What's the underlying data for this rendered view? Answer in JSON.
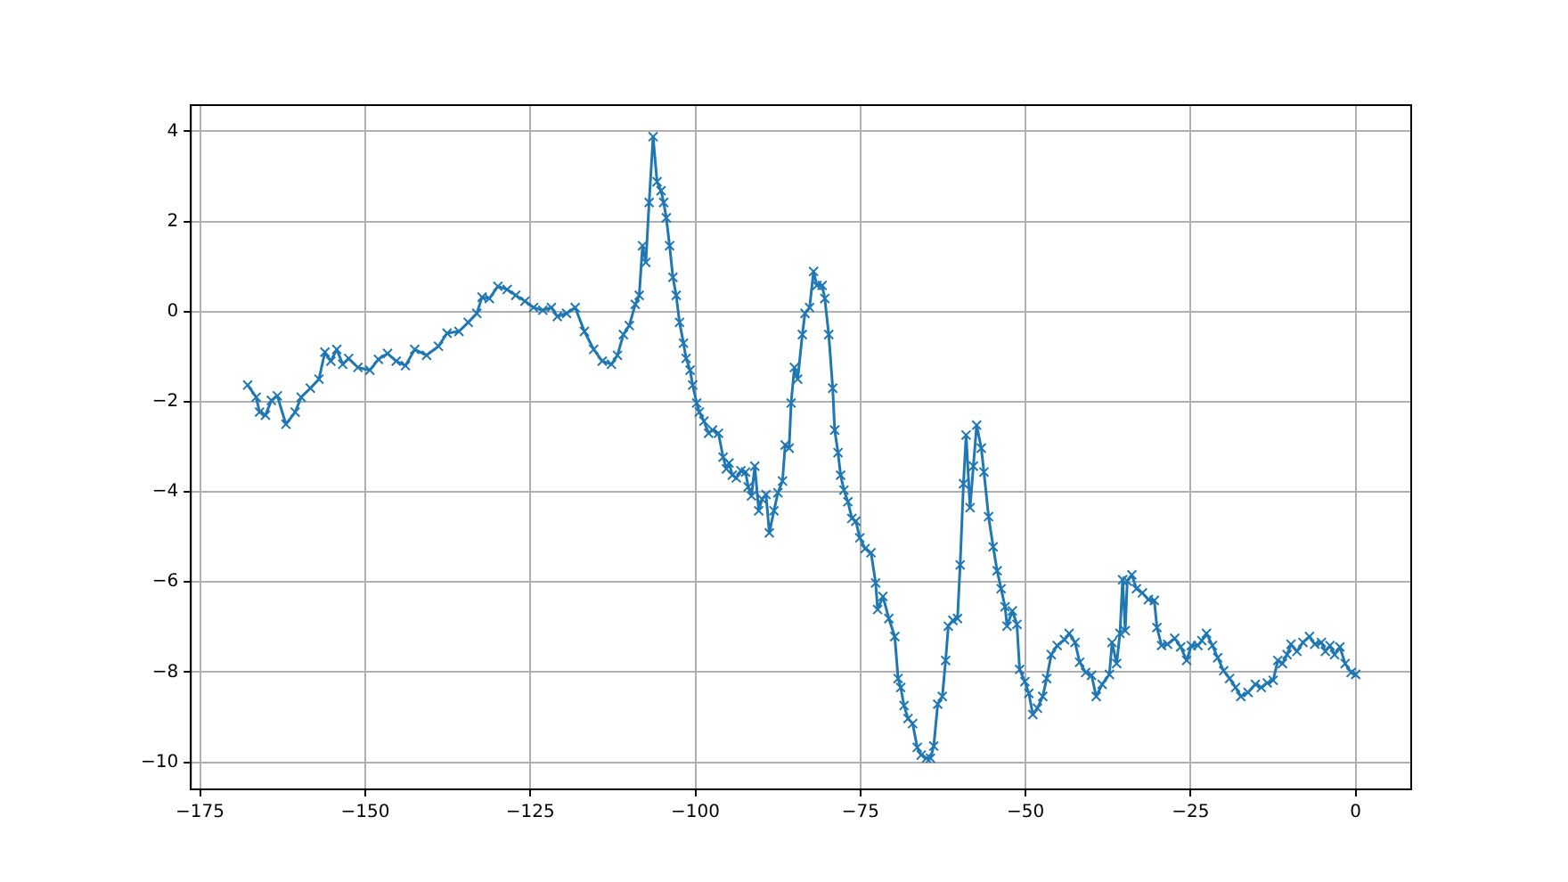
{
  "chart_data": {
    "type": "line",
    "marker": "cross",
    "grid": true,
    "xlim": [
      -176.4,
      8.4
    ],
    "xticks": [
      {
        "value": -175,
        "label": "−175"
      },
      {
        "value": -150,
        "label": "−150"
      },
      {
        "value": -125,
        "label": "−125"
      },
      {
        "value": -100,
        "label": "−100"
      },
      {
        "value": -75,
        "label": "−75"
      },
      {
        "value": -50,
        "label": "−50"
      },
      {
        "value": -25,
        "label": "−25"
      },
      0
    ],
    "ylim": [
      -10.6,
      4.58
    ],
    "yticks": [
      {
        "value": -10,
        "label": "−10"
      },
      {
        "value": -8,
        "label": "−8"
      },
      {
        "value": -6,
        "label": "−6"
      },
      {
        "value": -4,
        "label": "−4"
      },
      {
        "value": -2,
        "label": "−2"
      },
      0,
      2,
      4
    ],
    "series": [
      {
        "color": "#1f77b4",
        "x": [
          -167.8,
          -166.5,
          -166.0,
          -165.1,
          -164.2,
          -163.3,
          -162.0,
          -160.6,
          -159.7,
          -158.3,
          -157.0,
          -156.1,
          -155.2,
          -154.3,
          -153.4,
          -152.5,
          -151.1,
          -149.3,
          -148.0,
          -146.6,
          -145.3,
          -143.9,
          -142.5,
          -140.7,
          -138.9,
          -137.6,
          -135.8,
          -134.4,
          -133.1,
          -132.3,
          -131.2,
          -129.9,
          -128.5,
          -127.2,
          -125.8,
          -124.5,
          -123.1,
          -121.8,
          -120.9,
          -119.5,
          -118.2,
          -116.8,
          -115.4,
          -114.1,
          -112.7,
          -111.8,
          -110.9,
          -110.0,
          -109.1,
          -108.5,
          -108.0,
          -107.5,
          -107.0,
          -106.4,
          -105.8,
          -105.2,
          -104.8,
          -104.4,
          -103.9,
          -103.4,
          -102.9,
          -102.4,
          -101.8,
          -101.4,
          -100.8,
          -100.4,
          -99.8,
          -99.4,
          -98.7,
          -98.0,
          -97.4,
          -96.5,
          -95.8,
          -95.3,
          -94.9,
          -94.4,
          -93.8,
          -93.1,
          -92.4,
          -92.0,
          -91.5,
          -91.0,
          -90.4,
          -89.9,
          -89.3,
          -88.8,
          -88.1,
          -87.5,
          -86.8,
          -86.4,
          -85.8,
          -85.5,
          -85.0,
          -84.5,
          -83.8,
          -83.4,
          -82.7,
          -82.1,
          -81.6,
          -80.8,
          -80.4,
          -79.8,
          -79.2,
          -78.9,
          -78.4,
          -78.0,
          -77.5,
          -76.9,
          -76.3,
          -75.7,
          -75.1,
          -74.3,
          -73.4,
          -72.7,
          -72.4,
          -71.6,
          -70.7,
          -69.8,
          -69.3,
          -68.9,
          -68.4,
          -67.8,
          -67.1,
          -66.4,
          -65.8,
          -65.0,
          -64.4,
          -63.9,
          -63.3,
          -62.6,
          -62.1,
          -61.7,
          -61.0,
          -60.3,
          -59.9,
          -59.4,
          -59.0,
          -58.4,
          -57.9,
          -57.4,
          -56.7,
          -56.3,
          -55.6,
          -54.9,
          -54.3,
          -53.7,
          -53.1,
          -52.8,
          -52.0,
          -51.3,
          -50.9,
          -50.1,
          -49.5,
          -48.9,
          -48.2,
          -47.4,
          -46.8,
          -46.1,
          -45.2,
          -44.1,
          -43.4,
          -42.5,
          -41.8,
          -40.9,
          -40.0,
          -39.3,
          -38.4,
          -37.3,
          -36.9,
          -36.2,
          -35.7,
          -35.3,
          -34.9,
          -34.6,
          -33.9,
          -33.2,
          -32.3,
          -31.4,
          -30.5,
          -30.1,
          -29.4,
          -28.5,
          -27.4,
          -26.5,
          -25.6,
          -24.9,
          -23.9,
          -23.3,
          -22.6,
          -21.7,
          -20.9,
          -20.0,
          -19.1,
          -18.2,
          -17.4,
          -16.3,
          -15.2,
          -14.3,
          -13.4,
          -12.5,
          -11.8,
          -11.1,
          -10.4,
          -9.8,
          -8.9,
          -8.0,
          -7.0,
          -6.2,
          -5.2,
          -4.6,
          -3.9,
          -3.2,
          -2.4,
          -1.6,
          -0.7,
          0
        ],
        "values": [
          -1.63,
          -1.9,
          -2.23,
          -2.3,
          -1.97,
          -1.87,
          -2.5,
          -2.23,
          -1.9,
          -1.7,
          -1.5,
          -0.9,
          -1.1,
          -0.84,
          -1.17,
          -1.04,
          -1.24,
          -1.3,
          -1.06,
          -0.93,
          -1.1,
          -1.2,
          -0.84,
          -0.97,
          -0.77,
          -0.48,
          -0.44,
          -0.24,
          -0.04,
          0.32,
          0.29,
          0.56,
          0.49,
          0.36,
          0.23,
          0.09,
          0.03,
          0.09,
          -0.11,
          -0.04,
          0.09,
          -0.44,
          -0.84,
          -1.1,
          -1.17,
          -0.97,
          -0.51,
          -0.31,
          0.16,
          0.36,
          1.46,
          1.09,
          2.42,
          3.88,
          2.88,
          2.68,
          2.42,
          2.08,
          1.46,
          0.76,
          0.36,
          -0.24,
          -0.7,
          -1.04,
          -1.3,
          -1.63,
          -2.03,
          -2.23,
          -2.43,
          -2.7,
          -2.63,
          -2.7,
          -3.23,
          -3.49,
          -3.36,
          -3.63,
          -3.69,
          -3.53,
          -3.56,
          -3.89,
          -4.09,
          -3.43,
          -4.42,
          -4.16,
          -4.06,
          -4.91,
          -4.42,
          -4.02,
          -3.76,
          -2.96,
          -3.03,
          -2.03,
          -1.24,
          -1.5,
          -0.51,
          -0.04,
          0.09,
          0.89,
          0.58,
          0.58,
          0.29,
          -0.51,
          -1.7,
          -2.63,
          -3.13,
          -3.63,
          -3.96,
          -4.22,
          -4.59,
          -4.65,
          -5.02,
          -5.26,
          -5.35,
          -6.02,
          -6.61,
          -6.32,
          -6.81,
          -7.21,
          -8.14,
          -8.34,
          -8.74,
          -9.03,
          -9.14,
          -9.67,
          -9.84,
          -9.91,
          -9.91,
          -9.64,
          -8.71,
          -8.54,
          -7.74,
          -6.98,
          -6.85,
          -6.81,
          -5.62,
          -3.82,
          -2.74,
          -4.35,
          -3.43,
          -2.52,
          -3.03,
          -3.56,
          -4.55,
          -5.22,
          -5.75,
          -6.15,
          -6.55,
          -6.98,
          -6.64,
          -6.94,
          -7.94,
          -8.21,
          -8.47,
          -8.94,
          -8.8,
          -8.54,
          -8.14,
          -7.61,
          -7.41,
          -7.28,
          -7.14,
          -7.34,
          -7.78,
          -8.01,
          -8.07,
          -8.54,
          -8.27,
          -8.05,
          -7.34,
          -7.81,
          -7.14,
          -5.95,
          -7.08,
          -5.98,
          -5.84,
          -6.15,
          -6.24,
          -6.39,
          -6.41,
          -7.01,
          -7.41,
          -7.38,
          -7.25,
          -7.44,
          -7.74,
          -7.41,
          -7.41,
          -7.3,
          -7.14,
          -7.41,
          -7.68,
          -7.97,
          -8.14,
          -8.34,
          -8.54,
          -8.45,
          -8.27,
          -8.34,
          -8.24,
          -8.18,
          -7.74,
          -7.81,
          -7.61,
          -7.38,
          -7.54,
          -7.34,
          -7.21,
          -7.38,
          -7.34,
          -7.54,
          -7.41,
          -7.61,
          -7.44,
          -7.81,
          -8.01,
          -8.05
        ]
      }
    ]
  }
}
